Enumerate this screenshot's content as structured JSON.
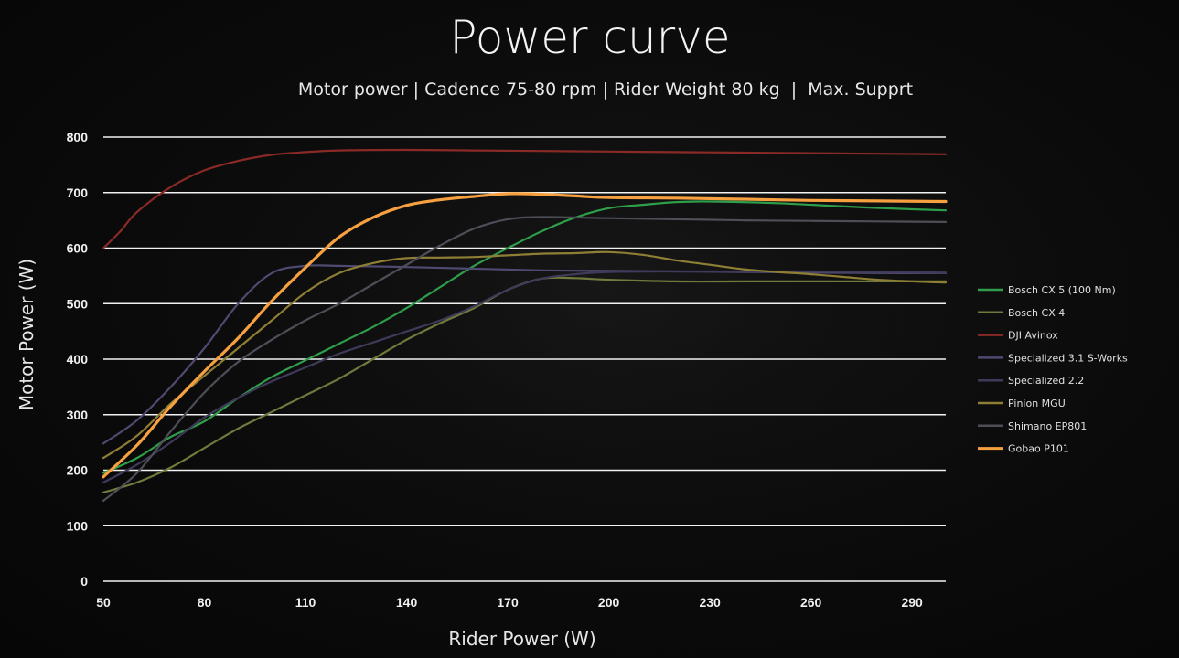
{
  "chart_data": {
    "type": "line",
    "title": "Power curve",
    "subtitle": "Motor power | Cadence 75-80 rpm | Rider Weight 80 kg  |  Max. Supprt",
    "xlabel": "Rider Power (W)",
    "ylabel": "Motor Power (W)",
    "xlim": [
      50,
      300
    ],
    "ylim": [
      0,
      800
    ],
    "x_ticks": [
      "50",
      "80",
      "110",
      "140",
      "170",
      "200",
      "230",
      "260",
      "290"
    ],
    "y_ticks": [
      "0",
      "100",
      "200",
      "300",
      "400",
      "500",
      "600",
      "700",
      "800"
    ],
    "grid": true,
    "legend_position": "right",
    "series": [
      {
        "name": "Bosch CX 5 (100 Nm)",
        "color": "#2f9e4a",
        "points": [
          [
            50,
            195
          ],
          [
            60,
            222
          ],
          [
            70,
            260
          ],
          [
            80,
            288
          ],
          [
            90,
            330
          ],
          [
            100,
            368
          ],
          [
            110,
            398
          ],
          [
            120,
            428
          ],
          [
            130,
            458
          ],
          [
            140,
            492
          ],
          [
            150,
            530
          ],
          [
            160,
            568
          ],
          [
            170,
            600
          ],
          [
            180,
            630
          ],
          [
            190,
            655
          ],
          [
            200,
            672
          ],
          [
            210,
            678
          ],
          [
            220,
            683
          ],
          [
            230,
            684
          ],
          [
            250,
            681
          ],
          [
            270,
            675
          ],
          [
            290,
            670
          ],
          [
            300,
            668
          ]
        ]
      },
      {
        "name": "Bosch CX 4",
        "color": "#6f7a3c",
        "points": [
          [
            50,
            160
          ],
          [
            60,
            178
          ],
          [
            70,
            205
          ],
          [
            80,
            240
          ],
          [
            90,
            275
          ],
          [
            100,
            305
          ],
          [
            110,
            335
          ],
          [
            120,
            365
          ],
          [
            130,
            400
          ],
          [
            140,
            435
          ],
          [
            150,
            465
          ],
          [
            160,
            492
          ],
          [
            170,
            525
          ],
          [
            180,
            545
          ],
          [
            190,
            546
          ],
          [
            200,
            543
          ],
          [
            220,
            540
          ],
          [
            240,
            540
          ],
          [
            260,
            540
          ],
          [
            280,
            540
          ],
          [
            300,
            540
          ]
        ]
      },
      {
        "name": "DJI Avinox",
        "color": "#8a2a26",
        "points": [
          [
            50,
            600
          ],
          [
            55,
            630
          ],
          [
            60,
            665
          ],
          [
            70,
            710
          ],
          [
            80,
            740
          ],
          [
            90,
            757
          ],
          [
            100,
            768
          ],
          [
            110,
            773
          ],
          [
            120,
            776
          ],
          [
            140,
            777
          ],
          [
            160,
            776
          ],
          [
            180,
            775
          ],
          [
            200,
            774
          ],
          [
            220,
            773
          ],
          [
            240,
            772
          ],
          [
            260,
            771
          ],
          [
            280,
            770
          ],
          [
            300,
            769
          ]
        ]
      },
      {
        "name": "Specialized 3.1 S-Works",
        "color": "#4f4a72",
        "points": [
          [
            50,
            248
          ],
          [
            60,
            290
          ],
          [
            70,
            350
          ],
          [
            80,
            420
          ],
          [
            90,
            500
          ],
          [
            100,
            555
          ],
          [
            110,
            568
          ],
          [
            120,
            568
          ],
          [
            140,
            566
          ],
          [
            160,
            563
          ],
          [
            180,
            560
          ],
          [
            200,
            559
          ],
          [
            220,
            558
          ],
          [
            240,
            557
          ],
          [
            260,
            556
          ],
          [
            280,
            555
          ],
          [
            300,
            555
          ]
        ]
      },
      {
        "name": "Specialized 2.2",
        "color": "#3f3a5a",
        "points": [
          [
            50,
            178
          ],
          [
            60,
            210
          ],
          [
            70,
            250
          ],
          [
            80,
            295
          ],
          [
            90,
            330
          ],
          [
            100,
            360
          ],
          [
            110,
            385
          ],
          [
            120,
            410
          ],
          [
            130,
            430
          ],
          [
            140,
            450
          ],
          [
            150,
            470
          ],
          [
            160,
            495
          ],
          [
            170,
            525
          ],
          [
            180,
            545
          ],
          [
            190,
            553
          ],
          [
            200,
            557
          ],
          [
            220,
            558
          ],
          [
            240,
            558
          ],
          [
            260,
            558
          ],
          [
            280,
            557
          ],
          [
            300,
            556
          ]
        ]
      },
      {
        "name": "Pinion MGU",
        "color": "#8e7f34",
        "points": [
          [
            50,
            222
          ],
          [
            60,
            262
          ],
          [
            70,
            320
          ],
          [
            80,
            370
          ],
          [
            90,
            420
          ],
          [
            100,
            470
          ],
          [
            110,
            520
          ],
          [
            120,
            555
          ],
          [
            130,
            573
          ],
          [
            140,
            582
          ],
          [
            150,
            583
          ],
          [
            160,
            584
          ],
          [
            170,
            587
          ],
          [
            180,
            590
          ],
          [
            190,
            591
          ],
          [
            200,
            593
          ],
          [
            210,
            588
          ],
          [
            220,
            578
          ],
          [
            230,
            570
          ],
          [
            240,
            562
          ],
          [
            250,
            557
          ],
          [
            260,
            553
          ],
          [
            270,
            548
          ],
          [
            280,
            543
          ],
          [
            290,
            540
          ],
          [
            300,
            538
          ]
        ]
      },
      {
        "name": "Shimano EP801",
        "color": "#4e4e58",
        "points": [
          [
            50,
            145
          ],
          [
            60,
            195
          ],
          [
            70,
            270
          ],
          [
            80,
            340
          ],
          [
            90,
            395
          ],
          [
            100,
            435
          ],
          [
            110,
            470
          ],
          [
            120,
            500
          ],
          [
            130,
            535
          ],
          [
            140,
            570
          ],
          [
            150,
            605
          ],
          [
            160,
            635
          ],
          [
            170,
            652
          ],
          [
            180,
            656
          ],
          [
            200,
            654
          ],
          [
            220,
            652
          ],
          [
            240,
            650
          ],
          [
            260,
            649
          ],
          [
            280,
            648
          ],
          [
            300,
            647
          ]
        ]
      },
      {
        "name": "Gobao P101",
        "color": "#f7a040",
        "points": [
          [
            50,
            188
          ],
          [
            60,
            245
          ],
          [
            70,
            315
          ],
          [
            80,
            378
          ],
          [
            90,
            438
          ],
          [
            100,
            505
          ],
          [
            110,
            565
          ],
          [
            120,
            620
          ],
          [
            130,
            655
          ],
          [
            140,
            677
          ],
          [
            150,
            687
          ],
          [
            160,
            693
          ],
          [
            170,
            698
          ],
          [
            180,
            697
          ],
          [
            190,
            694
          ],
          [
            200,
            691
          ],
          [
            220,
            690
          ],
          [
            240,
            688
          ],
          [
            260,
            686
          ],
          [
            280,
            685
          ],
          [
            300,
            684
          ]
        ]
      }
    ]
  }
}
